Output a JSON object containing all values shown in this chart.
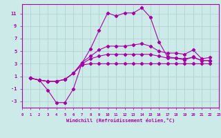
{
  "xlabel": "Windchill (Refroidissement éolien,°C)",
  "bg_color": "#cceae7",
  "grid_color": "#aacfcc",
  "line_color": "#aa00aa",
  "xlim": [
    0,
    23
  ],
  "ylim": [
    -4.0,
    12.5
  ],
  "xticks": [
    0,
    1,
    2,
    3,
    4,
    5,
    6,
    7,
    8,
    9,
    10,
    11,
    12,
    13,
    14,
    15,
    16,
    17,
    18,
    19,
    20,
    21,
    22,
    23
  ],
  "yticks": [
    -3,
    -1,
    1,
    3,
    5,
    7,
    9,
    11
  ],
  "series": [
    {
      "x": [
        1,
        2,
        3,
        4,
        5,
        6,
        7,
        8,
        9,
        10,
        11,
        12,
        13,
        14,
        15,
        16,
        17,
        18,
        19,
        20,
        21,
        22
      ],
      "y": [
        0.7,
        0.4,
        -1.2,
        -3.2,
        -3.2,
        -1.0,
        3.1,
        5.4,
        8.3,
        11.1,
        10.6,
        11.1,
        11.1,
        11.9,
        10.4,
        6.5,
        4.1,
        3.9,
        3.6,
        4.1,
        3.5,
        3.5
      ]
    },
    {
      "x": [
        1,
        2,
        3,
        4,
        5,
        6,
        7,
        8,
        9,
        10,
        11,
        12,
        13,
        14,
        15,
        16,
        17,
        18,
        19,
        20,
        21,
        22
      ],
      "y": [
        0.7,
        0.4,
        0.2,
        0.2,
        0.5,
        1.5,
        3.2,
        4.2,
        5.2,
        5.8,
        5.8,
        5.8,
        6.0,
        6.2,
        5.8,
        5.0,
        4.7,
        4.7,
        4.5,
        5.2,
        3.8,
        4.0
      ]
    },
    {
      "x": [
        1,
        2,
        3,
        4,
        5,
        6,
        7,
        8,
        9,
        10,
        11,
        12,
        13,
        14,
        15,
        16,
        17,
        18,
        19,
        20,
        21,
        22
      ],
      "y": [
        0.7,
        0.4,
        0.2,
        0.2,
        0.5,
        1.5,
        3.0,
        3.8,
        4.2,
        4.5,
        4.5,
        4.5,
        4.5,
        4.5,
        4.5,
        4.2,
        3.9,
        3.9,
        3.8,
        4.0,
        3.5,
        3.5
      ]
    },
    {
      "x": [
        1,
        2,
        3,
        4,
        5,
        6,
        7,
        8,
        9,
        10,
        11,
        12,
        13,
        14,
        15,
        16,
        17,
        18,
        19,
        20,
        21,
        22
      ],
      "y": [
        0.7,
        0.4,
        0.2,
        0.2,
        0.5,
        1.5,
        2.8,
        3.0,
        3.0,
        3.0,
        3.0,
        3.0,
        3.0,
        3.0,
        3.0,
        3.0,
        3.0,
        3.0,
        3.0,
        3.0,
        3.0,
        3.0
      ]
    }
  ]
}
